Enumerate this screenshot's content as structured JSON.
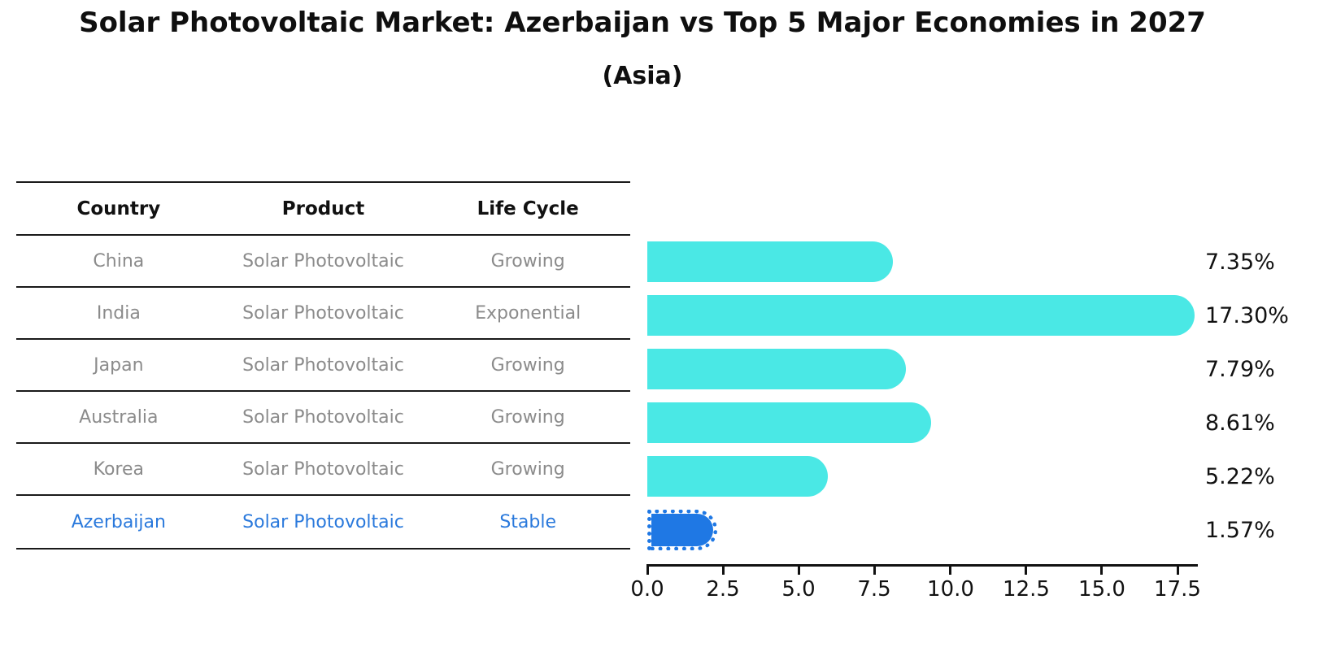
{
  "title": "Solar Photovoltaic Market: Azerbaijan vs Top 5 Major Economies in 2027",
  "subtitle": "(Asia)",
  "table": {
    "headers": [
      "Country",
      "Product",
      "Life Cycle"
    ],
    "rows": [
      {
        "country": "China",
        "product": "Solar Photovoltaic",
        "life_cycle": "Growing",
        "highlight": false
      },
      {
        "country": "India",
        "product": "Solar Photovoltaic",
        "life_cycle": "Exponential",
        "highlight": false
      },
      {
        "country": "Japan",
        "product": "Solar Photovoltaic",
        "life_cycle": "Growing",
        "highlight": false
      },
      {
        "country": "Australia",
        "product": "Solar Photovoltaic",
        "life_cycle": "Growing",
        "highlight": false
      },
      {
        "country": "Korea",
        "product": "Solar Photovoltaic",
        "life_cycle": "Growing",
        "highlight": false
      },
      {
        "country": "Azerbaijan",
        "product": "Solar Photovoltaic",
        "life_cycle": "Stable",
        "highlight": true
      }
    ]
  },
  "chart_data": {
    "type": "bar",
    "orientation": "horizontal",
    "title": "Solar Photovoltaic Market: Azerbaijan vs Top 5 Major Economies in 2027 (Asia)",
    "xlabel": "",
    "ylabel": "",
    "categories": [
      "China",
      "India",
      "Japan",
      "Australia",
      "Korea",
      "Azerbaijan"
    ],
    "values": [
      7.35,
      17.3,
      7.79,
      8.61,
      5.22,
      1.57
    ],
    "value_labels": [
      "7.35%",
      "17.30%",
      "7.79%",
      "8.61%",
      "5.22%",
      "1.57%"
    ],
    "x_ticks": [
      0.0,
      2.5,
      5.0,
      7.5,
      10.0,
      12.5,
      15.0,
      17.5
    ],
    "x_tick_labels": [
      "0.0",
      "2.5",
      "5.0",
      "7.5",
      "10.0",
      "12.5",
      "15.0",
      "17.5"
    ],
    "xlim": [
      0,
      18.17
    ],
    "grid": false,
    "legend": false,
    "highlight_index": 5
  },
  "colors": {
    "bar": "#4ae8e5",
    "highlight_bar": "#1f78e4",
    "highlight_text": "#2a79dc",
    "table_text": "#8b8b8b",
    "header_text": "#111111",
    "axis": "#111111",
    "rule": "#1a1a1a"
  }
}
